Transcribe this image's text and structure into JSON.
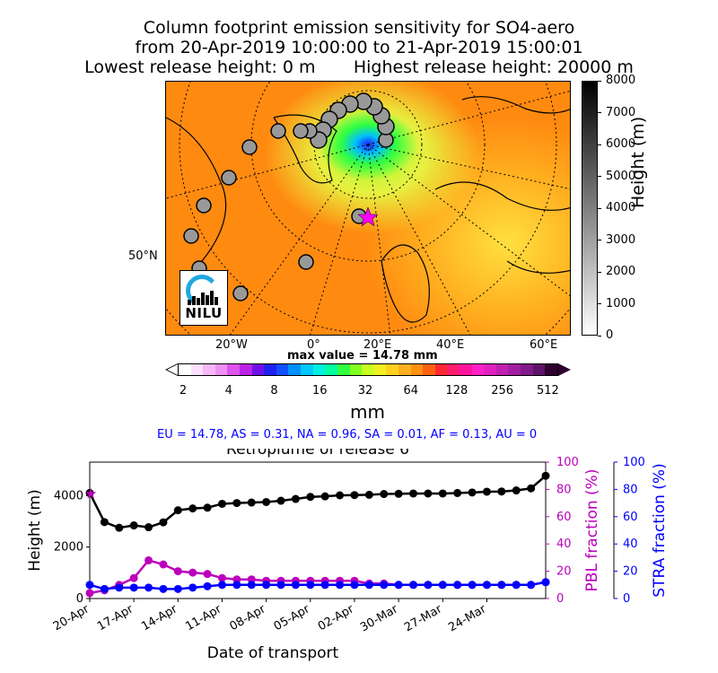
{
  "header": {
    "line1": "Column footprint emission sensitivity for SO4-aero",
    "line2": "from 20-Apr-2019 10:00:00 to 21-Apr-2019 15:00:01",
    "line3": "Lowest release height: 0 m       Highest release height: 20000 m"
  },
  "map": {
    "lon_labels": [
      "20°W",
      "0°",
      "20°E",
      "40°E",
      "60°E"
    ],
    "lat_label": "50°N",
    "logo_text": "NILU",
    "max_value_text": "max value = 14.78 mm",
    "release_height_markers": [
      {
        "label": "release point",
        "height_m": 700
      }
    ]
  },
  "height_colorbar": {
    "label": "Height (m)",
    "ticks": [
      "8000",
      "7000",
      "6000",
      "5000",
      "4000",
      "3000",
      "2000",
      "1000",
      "0"
    ]
  },
  "mm_colorbar": {
    "label": "mm",
    "ticks": [
      "2",
      "4",
      "8",
      "16",
      "32",
      "64",
      "128",
      "256",
      "512"
    ],
    "colors": [
      "#ffffff",
      "#fde0fd",
      "#f6b8f8",
      "#ee90f4",
      "#dd55ec",
      "#bb22e8",
      "#7010e8",
      "#2020f0",
      "#1050ff",
      "#0090ff",
      "#00c8ff",
      "#00f0e0",
      "#00ffa0",
      "#30ff40",
      "#80ff20",
      "#c8ff20",
      "#f0f020",
      "#ffd020",
      "#ffb020",
      "#ff9010",
      "#ff6010",
      "#ff2a30",
      "#ff1c6c",
      "#ff14a0",
      "#ff20c8",
      "#e020c0",
      "#c020b0",
      "#a01ea0",
      "#801a88",
      "#5c1468",
      "#300030"
    ]
  },
  "region_summary": "EU = 14.78,  AS = 0.31,  NA = 0.96,  SA = 0.01,  AF = 0.13,  AU = 0",
  "chart_data": {
    "type": "line",
    "title": "Retroplume of release 6",
    "xlabel": "Date of transport",
    "ylabel": "Height (m)",
    "ylabel_right1": "PBL fraction (%)",
    "ylabel_right2": "STRA fraction (%)",
    "x_tick_labels": [
      "20-Apr",
      "17-Apr",
      "14-Apr",
      "11-Apr",
      "08-Apr",
      "05-Apr",
      "02-Apr",
      "30-Mar",
      "27-Mar",
      "24-Mar"
    ],
    "x_tick_positions": [
      0,
      3,
      6,
      9,
      12,
      15,
      18,
      21,
      24,
      27
    ],
    "ylim": [
      0,
      5300
    ],
    "yticks": [
      0,
      2000,
      4000
    ],
    "ylim_right": [
      0,
      100
    ],
    "yticks_right": [
      0,
      20,
      40,
      60,
      80,
      100
    ],
    "x": [
      0,
      1,
      2,
      3,
      4,
      5,
      6,
      7,
      8,
      9,
      10,
      11,
      12,
      13,
      14,
      15,
      16,
      17,
      18,
      19,
      20,
      21,
      22,
      23,
      24,
      25,
      26,
      27,
      28,
      29,
      30,
      31
    ],
    "series": [
      {
        "name": "Height",
        "axis": "left",
        "color": "#000000",
        "values": [
          4100,
          2970,
          2750,
          2840,
          2770,
          2960,
          3430,
          3500,
          3530,
          3680,
          3710,
          3730,
          3750,
          3800,
          3870,
          3950,
          3970,
          4010,
          4020,
          4030,
          4060,
          4070,
          4080,
          4080,
          4080,
          4100,
          4120,
          4150,
          4160,
          4200,
          4280,
          4770
        ]
      },
      {
        "name": "PBL fraction",
        "axis": "right",
        "color": "#bb00bb",
        "values": [
          4,
          6,
          10,
          15,
          28,
          25,
          20,
          19,
          18,
          15,
          14,
          14,
          13,
          13,
          13,
          13,
          13,
          13,
          13,
          11,
          11,
          10,
          10,
          10,
          10,
          10,
          10,
          10,
          10,
          10,
          10,
          12
        ]
      },
      {
        "name": "STRA fraction",
        "axis": "right2",
        "color": "#0000ff",
        "values": [
          10,
          7,
          8,
          8,
          8,
          7,
          7,
          8,
          9,
          10,
          10,
          10,
          10,
          10,
          10,
          10,
          10,
          10,
          10,
          10,
          10,
          10,
          10,
          10,
          10,
          10,
          10,
          10,
          10,
          10,
          10,
          12
        ]
      }
    ]
  }
}
